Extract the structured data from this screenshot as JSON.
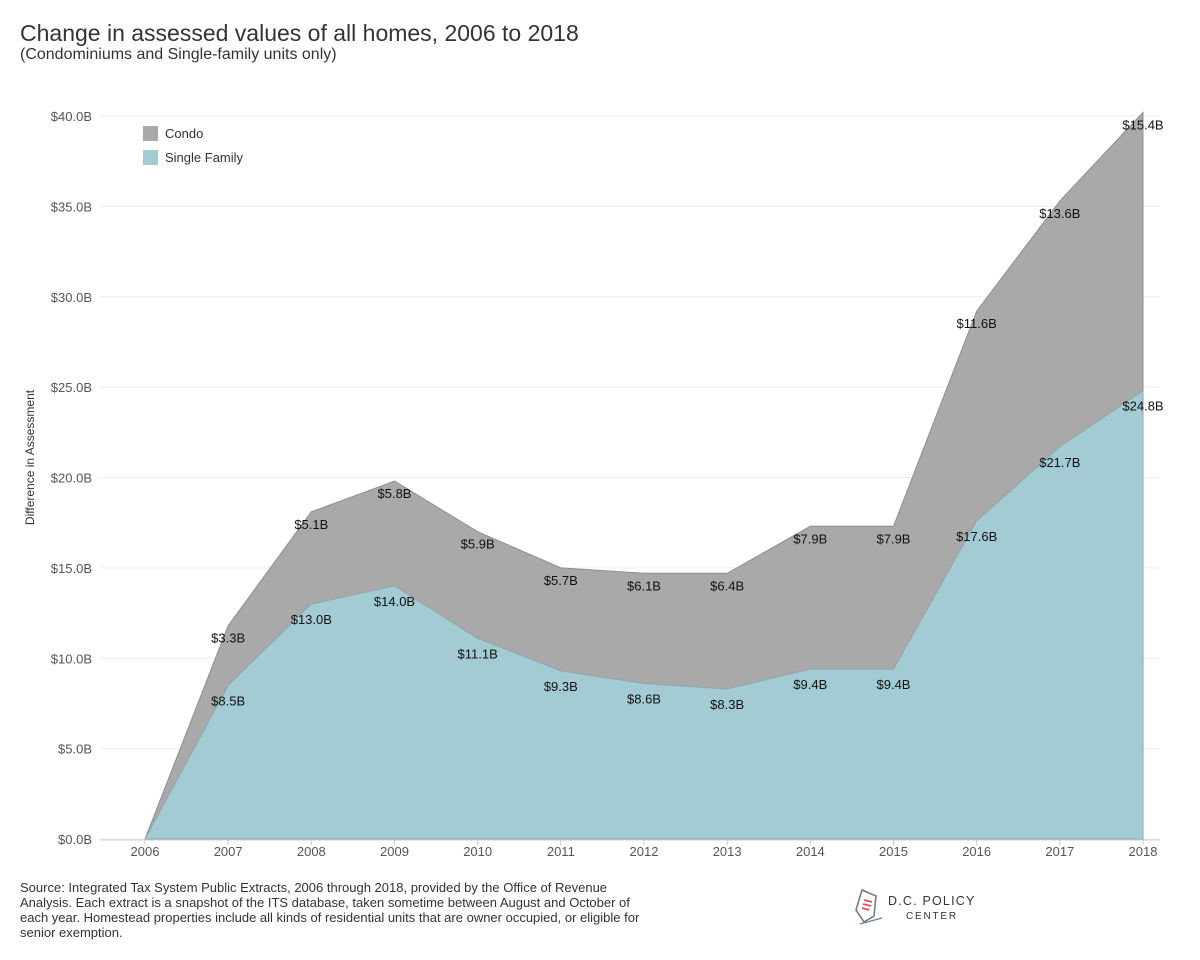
{
  "title": "Change in assessed values of all homes, 2006 to 2018",
  "subtitle": "(Condominiums and Single-family units only)",
  "source": "Source: Integrated Tax System Public Extracts, 2006 through 2018, provided by the Office of Revenue Analysis. Each extract is a snapshot of the ITS database, taken sometime between August and October of each year. Homestead properties include all kinds of residential units that are owner occupied, or eligible for senior exemption.",
  "logo": {
    "line1": "D.C. POLICY",
    "line2": "CENTER"
  },
  "chart_data": {
    "type": "area",
    "stacked": true,
    "title": "Change in assessed values of all homes, 2006 to 2018",
    "subtitle": "(Condominiums and Single-family units only)",
    "ylabel": "Difference in Assessment",
    "xlabel": "",
    "ylim": [
      0,
      40.0
    ],
    "yticks": [
      0,
      5,
      10,
      15,
      20,
      25,
      30,
      35,
      40
    ],
    "ytick_labels": [
      "$0.0B",
      "$5.0B",
      "$10.0B",
      "$15.0B",
      "$20.0B",
      "$25.0B",
      "$30.0B",
      "$35.0B",
      "$40.0B"
    ],
    "grid": true,
    "legend_position": "top-left",
    "x": [
      "2006",
      "2007",
      "2008",
      "2009",
      "2010",
      "2011",
      "2012",
      "2013",
      "2014",
      "2015",
      "2016",
      "2017",
      "2018"
    ],
    "series": [
      {
        "name": "Condo",
        "color": "#a9a9a9",
        "values": [
          0,
          3.3,
          5.1,
          5.8,
          5.9,
          5.7,
          6.1,
          6.4,
          7.9,
          7.9,
          11.6,
          13.6,
          15.4
        ],
        "labels": [
          "",
          "$3.3B",
          "$5.1B",
          "$5.8B",
          "$5.9B",
          "$5.7B",
          "$6.1B",
          "$6.4B",
          "$7.9B",
          "$7.9B",
          "$11.6B",
          "$13.6B",
          "$15.4B"
        ]
      },
      {
        "name": "Single Family",
        "color": "#a3cbd3",
        "values": [
          0,
          8.5,
          13.0,
          14.0,
          11.1,
          9.3,
          8.6,
          8.3,
          9.4,
          9.4,
          17.6,
          21.7,
          24.8
        ],
        "labels": [
          "",
          "$8.5B",
          "$13.0B",
          "$14.0B",
          "$11.1B",
          "$9.3B",
          "$8.6B",
          "$8.3B",
          "$9.4B",
          "$9.4B",
          "$17.6B",
          "$21.7B",
          "$24.8B"
        ]
      }
    ]
  }
}
